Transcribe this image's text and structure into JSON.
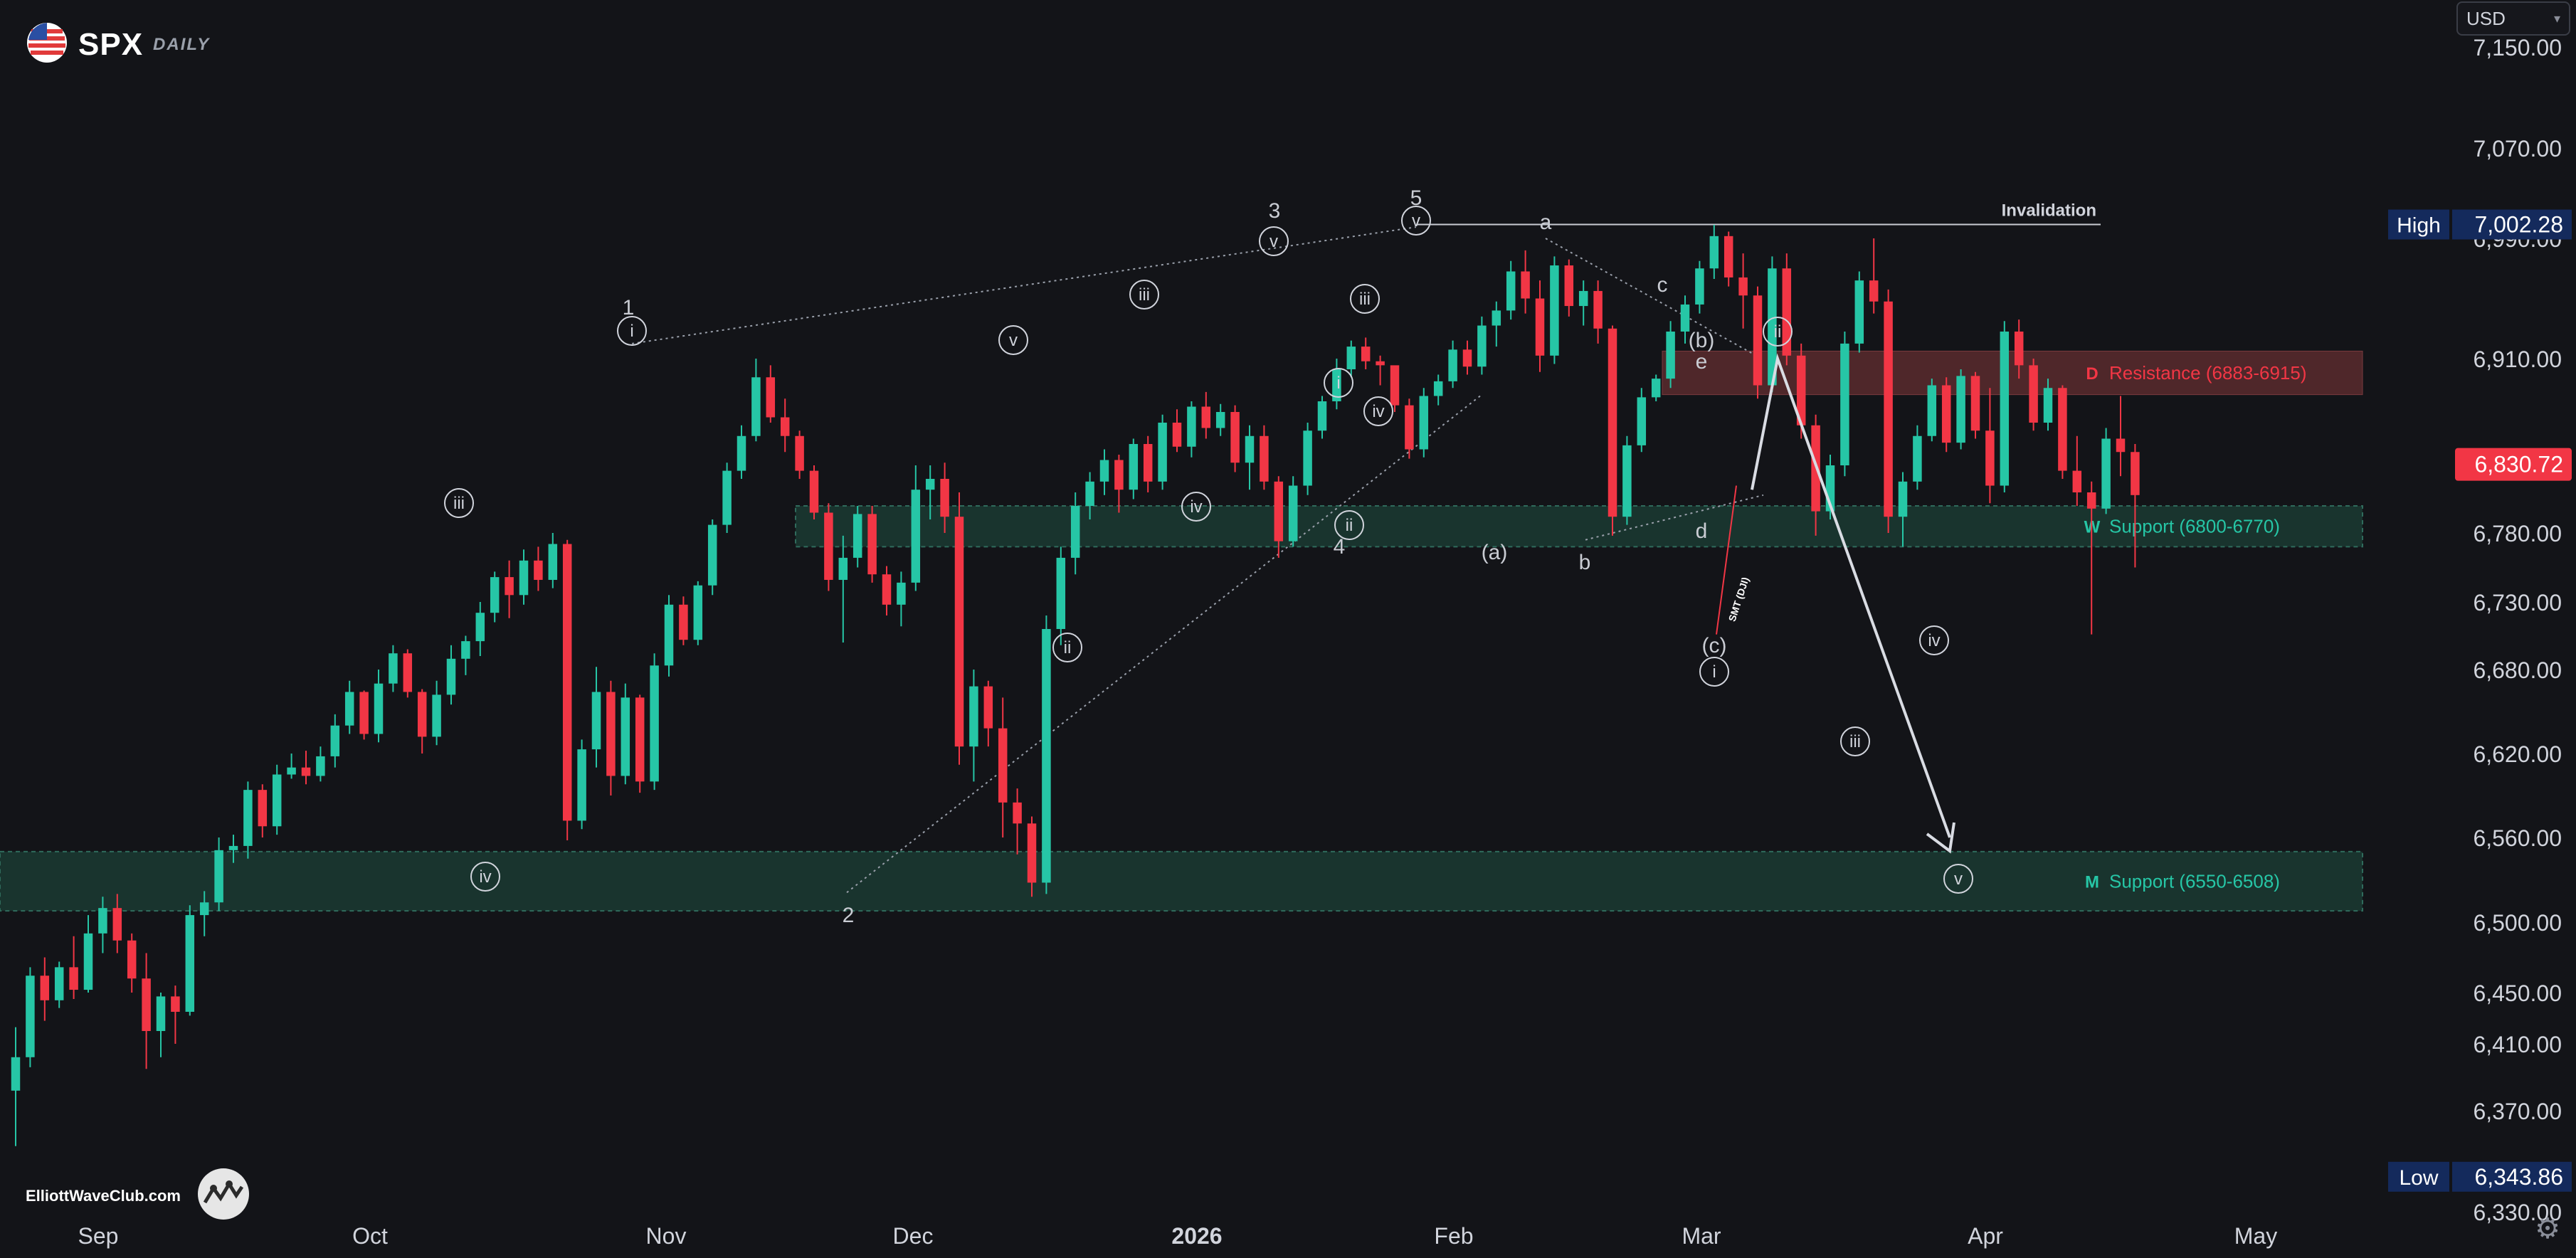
{
  "header": {
    "symbol": "SPX",
    "timeframe": "DAILY",
    "currency_select": "USD",
    "chevron": "chevron-down-icon"
  },
  "footer": {
    "credit": "ElliottWaveClub.com",
    "logo": "wave-logo-icon",
    "settings": "gear-icon"
  },
  "colors": {
    "background": "#131418",
    "up": "#26c6a6",
    "down": "#f23645",
    "support_zone": "#1b3a33",
    "resistance_zone": "#5a2a2e",
    "text": "#d1d4dc",
    "label_high_low": "#142a5c",
    "last_price": "#f23645"
  },
  "chart_data": {
    "type": "candlestick",
    "symbol": "SPX",
    "timeframe": "DAILY",
    "x_ticks": [
      "Sep",
      "Oct",
      "Nov",
      "Dec",
      "2026",
      "Feb",
      "Mar",
      "Apr",
      "May"
    ],
    "y_ticks": [
      "7,150.00",
      "7,070.00",
      "6,990.00",
      "6,910.00",
      "6,830.00",
      "6,780.00",
      "6,730.00",
      "6,680.00",
      "6,620.00",
      "6,560.00",
      "6,500.00",
      "6,450.00",
      "6,410.00",
      "6,370.00",
      "6,330.00"
    ],
    "y_range": [
      6310,
      7170
    ],
    "price_markers": [
      {
        "label": "High",
        "value": "7,002.28",
        "price": 7002.28
      },
      {
        "label": "",
        "value": "6,830.72",
        "price": 6830.72
      },
      {
        "label": "Low",
        "value": "6,343.86",
        "price": 6343.86
      }
    ],
    "candles": [
      [
        6382,
        6423,
        6356,
        6402
      ],
      [
        6402,
        6468,
        6396,
        6462
      ],
      [
        6462,
        6475,
        6428,
        6444
      ],
      [
        6444,
        6472,
        6438,
        6468
      ],
      [
        6468,
        6490,
        6445,
        6452
      ],
      [
        6452,
        6505,
        6450,
        6492
      ],
      [
        6492,
        6518,
        6478,
        6510
      ],
      [
        6510,
        6520,
        6478,
        6487
      ],
      [
        6487,
        6492,
        6450,
        6460
      ],
      [
        6460,
        6478,
        6395,
        6420
      ],
      [
        6420,
        6450,
        6402,
        6447
      ],
      [
        6447,
        6455,
        6410,
        6435
      ],
      [
        6435,
        6512,
        6432,
        6505
      ],
      [
        6505,
        6522,
        6490,
        6514
      ],
      [
        6514,
        6560,
        6508,
        6551
      ],
      [
        6551,
        6562,
        6542,
        6554
      ],
      [
        6554,
        6600,
        6545,
        6594
      ],
      [
        6594,
        6598,
        6560,
        6568
      ],
      [
        6568,
        6612,
        6562,
        6605
      ],
      [
        6605,
        6620,
        6602,
        6610
      ],
      [
        6610,
        6622,
        6598,
        6604
      ],
      [
        6604,
        6625,
        6600,
        6618
      ],
      [
        6618,
        6648,
        6610,
        6640
      ],
      [
        6640,
        6672,
        6634,
        6664
      ],
      [
        6664,
        6665,
        6630,
        6634
      ],
      [
        6634,
        6680,
        6628,
        6670
      ],
      [
        6670,
        6698,
        6664,
        6692
      ],
      [
        6692,
        6695,
        6660,
        6664
      ],
      [
        6664,
        6666,
        6620,
        6632
      ],
      [
        6632,
        6672,
        6626,
        6662
      ],
      [
        6662,
        6698,
        6655,
        6688
      ],
      [
        6688,
        6705,
        6676,
        6701
      ],
      [
        6701,
        6730,
        6690,
        6722
      ],
      [
        6722,
        6752,
        6715,
        6748
      ],
      [
        6748,
        6760,
        6718,
        6735
      ],
      [
        6735,
        6768,
        6728,
        6760
      ],
      [
        6760,
        6770,
        6738,
        6746
      ],
      [
        6746,
        6780,
        6740,
        6772
      ],
      [
        6772,
        6775,
        6558,
        6572
      ],
      [
        6572,
        6630,
        6566,
        6623
      ],
      [
        6623,
        6682,
        6610,
        6664
      ],
      [
        6664,
        6672,
        6590,
        6604
      ],
      [
        6604,
        6670,
        6598,
        6660
      ],
      [
        6660,
        6662,
        6592,
        6600
      ],
      [
        6600,
        6692,
        6594,
        6683
      ],
      [
        6683,
        6735,
        6675,
        6728
      ],
      [
        6728,
        6734,
        6698,
        6702
      ],
      [
        6702,
        6745,
        6698,
        6742
      ],
      [
        6742,
        6790,
        6735,
        6786
      ],
      [
        6786,
        6832,
        6780,
        6826
      ],
      [
        6826,
        6860,
        6820,
        6852
      ],
      [
        6852,
        6910,
        6848,
        6896
      ],
      [
        6896,
        6905,
        6862,
        6866
      ],
      [
        6866,
        6880,
        6840,
        6852
      ],
      [
        6852,
        6856,
        6820,
        6826
      ],
      [
        6826,
        6830,
        6790,
        6795
      ],
      [
        6795,
        6802,
        6738,
        6746
      ],
      [
        6746,
        6778,
        6700,
        6762
      ],
      [
        6762,
        6800,
        6755,
        6794
      ],
      [
        6794,
        6800,
        6744,
        6750
      ],
      [
        6750,
        6756,
        6720,
        6728
      ],
      [
        6728,
        6752,
        6712,
        6744
      ],
      [
        6744,
        6830,
        6738,
        6812
      ],
      [
        6812,
        6830,
        6790,
        6820
      ],
      [
        6820,
        6832,
        6780,
        6792
      ],
      [
        6792,
        6810,
        6612,
        6625
      ],
      [
        6625,
        6680,
        6600,
        6668
      ],
      [
        6668,
        6672,
        6625,
        6638
      ],
      [
        6638,
        6660,
        6560,
        6585
      ],
      [
        6585,
        6595,
        6548,
        6570
      ],
      [
        6570,
        6575,
        6518,
        6528
      ],
      [
        6528,
        6720,
        6520,
        6710
      ],
      [
        6710,
        6770,
        6698,
        6762
      ],
      [
        6762,
        6810,
        6750,
        6800
      ],
      [
        6800,
        6825,
        6790,
        6818
      ],
      [
        6818,
        6842,
        6808,
        6834
      ],
      [
        6834,
        6838,
        6795,
        6812
      ],
      [
        6812,
        6850,
        6805,
        6846
      ],
      [
        6846,
        6852,
        6810,
        6818
      ],
      [
        6818,
        6868,
        6812,
        6862
      ],
      [
        6862,
        6872,
        6840,
        6844
      ],
      [
        6844,
        6878,
        6836,
        6874
      ],
      [
        6874,
        6885,
        6850,
        6858
      ],
      [
        6858,
        6876,
        6852,
        6870
      ],
      [
        6870,
        6875,
        6825,
        6832
      ],
      [
        6832,
        6860,
        6812,
        6852
      ],
      [
        6852,
        6860,
        6812,
        6818
      ],
      [
        6818,
        6822,
        6762,
        6774
      ],
      [
        6774,
        6822,
        6770,
        6815
      ],
      [
        6815,
        6862,
        6808,
        6856
      ],
      [
        6856,
        6882,
        6850,
        6878
      ],
      [
        6878,
        6910,
        6872,
        6902
      ],
      [
        6902,
        6922,
        6896,
        6918
      ],
      [
        6918,
        6924,
        6902,
        6908
      ],
      [
        6908,
        6912,
        6890,
        6905
      ],
      [
        6905,
        6902,
        6870,
        6875
      ],
      [
        6875,
        6880,
        6835,
        6842
      ],
      [
        6842,
        6888,
        6836,
        6882
      ],
      [
        6882,
        6898,
        6875,
        6893
      ],
      [
        6893,
        6922,
        6888,
        6916
      ],
      [
        6916,
        6922,
        6898,
        6904
      ],
      [
        6904,
        6938,
        6898,
        6932
      ],
      [
        6932,
        6948,
        6918,
        6942
      ],
      [
        6942,
        6975,
        6936,
        6968
      ],
      [
        6968,
        6982,
        6940,
        6950
      ],
      [
        6950,
        6962,
        6900,
        6912
      ],
      [
        6912,
        6978,
        6906,
        6972
      ],
      [
        6972,
        6976,
        6938,
        6945
      ],
      [
        6945,
        6962,
        6932,
        6955
      ],
      [
        6955,
        6962,
        6920,
        6930
      ],
      [
        6930,
        6932,
        6778,
        6792
      ],
      [
        6792,
        6852,
        6786,
        6845
      ],
      [
        6845,
        6888,
        6840,
        6881
      ],
      [
        6881,
        6898,
        6878,
        6895
      ],
      [
        6895,
        6935,
        6888,
        6928
      ],
      [
        6928,
        6952,
        6920,
        6946
      ],
      [
        6946,
        6975,
        6940,
        6970
      ],
      [
        6970,
        7002,
        6963,
        6992
      ],
      [
        6992,
        6996,
        6958,
        6964
      ],
      [
        6964,
        6980,
        6930,
        6952
      ],
      [
        6952,
        6958,
        6880,
        6890
      ],
      [
        6890,
        6978,
        6885,
        6970
      ],
      [
        6970,
        6980,
        6905,
        6912
      ],
      [
        6912,
        6920,
        6850,
        6860
      ],
      [
        6860,
        6868,
        6778,
        6796
      ],
      [
        6796,
        6838,
        6790,
        6830
      ],
      [
        6830,
        6928,
        6822,
        6920
      ],
      [
        6920,
        6968,
        6914,
        6962
      ],
      [
        6962,
        6990,
        6940,
        6948
      ],
      [
        6948,
        6956,
        6780,
        6792
      ],
      [
        6792,
        6825,
        6770,
        6818
      ],
      [
        6818,
        6860,
        6812,
        6852
      ],
      [
        6852,
        6895,
        6848,
        6890
      ],
      [
        6890,
        6896,
        6840,
        6847
      ],
      [
        6847,
        6902,
        6842,
        6897
      ],
      [
        6897,
        6900,
        6850,
        6856
      ],
      [
        6856,
        6888,
        6802,
        6815
      ],
      [
        6815,
        6935,
        6810,
        6928
      ],
      [
        6928,
        6936,
        6895,
        6905
      ],
      [
        6905,
        6910,
        6856,
        6862
      ],
      [
        6862,
        6895,
        6856,
        6888
      ],
      [
        6888,
        6890,
        6820,
        6826
      ],
      [
        6826,
        6852,
        6800,
        6810
      ],
      [
        6810,
        6818,
        6706,
        6798
      ],
      [
        6798,
        6858,
        6794,
        6850
      ],
      [
        6850,
        6882,
        6822,
        6840
      ],
      [
        6840,
        6846,
        6755,
        6808
      ]
    ],
    "annotations": {
      "zones": [
        {
          "id": "zone-support-6800",
          "label": "Support (6800-6770)",
          "tag": "W"
        },
        {
          "id": "zone-resistance",
          "label": "Resistance (6883-6915)",
          "tag": "D"
        },
        {
          "id": "zone-support-6550",
          "label": "Support (6550-6508)",
          "tag": "M"
        }
      ],
      "invalidation_label": "Invalidation",
      "smt_label": "SMT (DJI)",
      "wave_labels": [
        {
          "text": "1",
          "circled": false
        },
        {
          "text": "2",
          "circled": false
        },
        {
          "text": "3",
          "circled": false
        },
        {
          "text": "4",
          "circled": false
        },
        {
          "text": "5",
          "circled": false
        },
        {
          "text": "v",
          "circled": true
        },
        {
          "text": "iii",
          "circled": true
        },
        {
          "text": "iv",
          "circled": true
        },
        {
          "text": "i",
          "circled": true
        },
        {
          "text": "ii",
          "circled": true
        },
        {
          "text": "iii",
          "circled": true
        },
        {
          "text": "iv",
          "circled": true
        },
        {
          "text": "v",
          "circled": true
        },
        {
          "text": "i",
          "circled": true
        },
        {
          "text": "ii",
          "circled": true
        },
        {
          "text": "iii",
          "circled": true
        },
        {
          "text": "iv",
          "circled": true
        },
        {
          "text": "v",
          "circled": true
        },
        {
          "text": "a",
          "circled": false
        },
        {
          "text": "b",
          "circled": false
        },
        {
          "text": "c",
          "circled": false
        },
        {
          "text": "d",
          "circled": false
        },
        {
          "text": "e",
          "circled": false
        },
        {
          "text": "(a)",
          "circled": false
        },
        {
          "text": "(b)",
          "circled": false
        },
        {
          "text": "(c)",
          "circled": false
        },
        {
          "text": "i",
          "circled": true
        },
        {
          "text": "ii",
          "circled": true
        },
        {
          "text": "iii",
          "circled": true
        },
        {
          "text": "iv",
          "circled": true
        },
        {
          "text": "v",
          "circled": true
        }
      ]
    }
  }
}
